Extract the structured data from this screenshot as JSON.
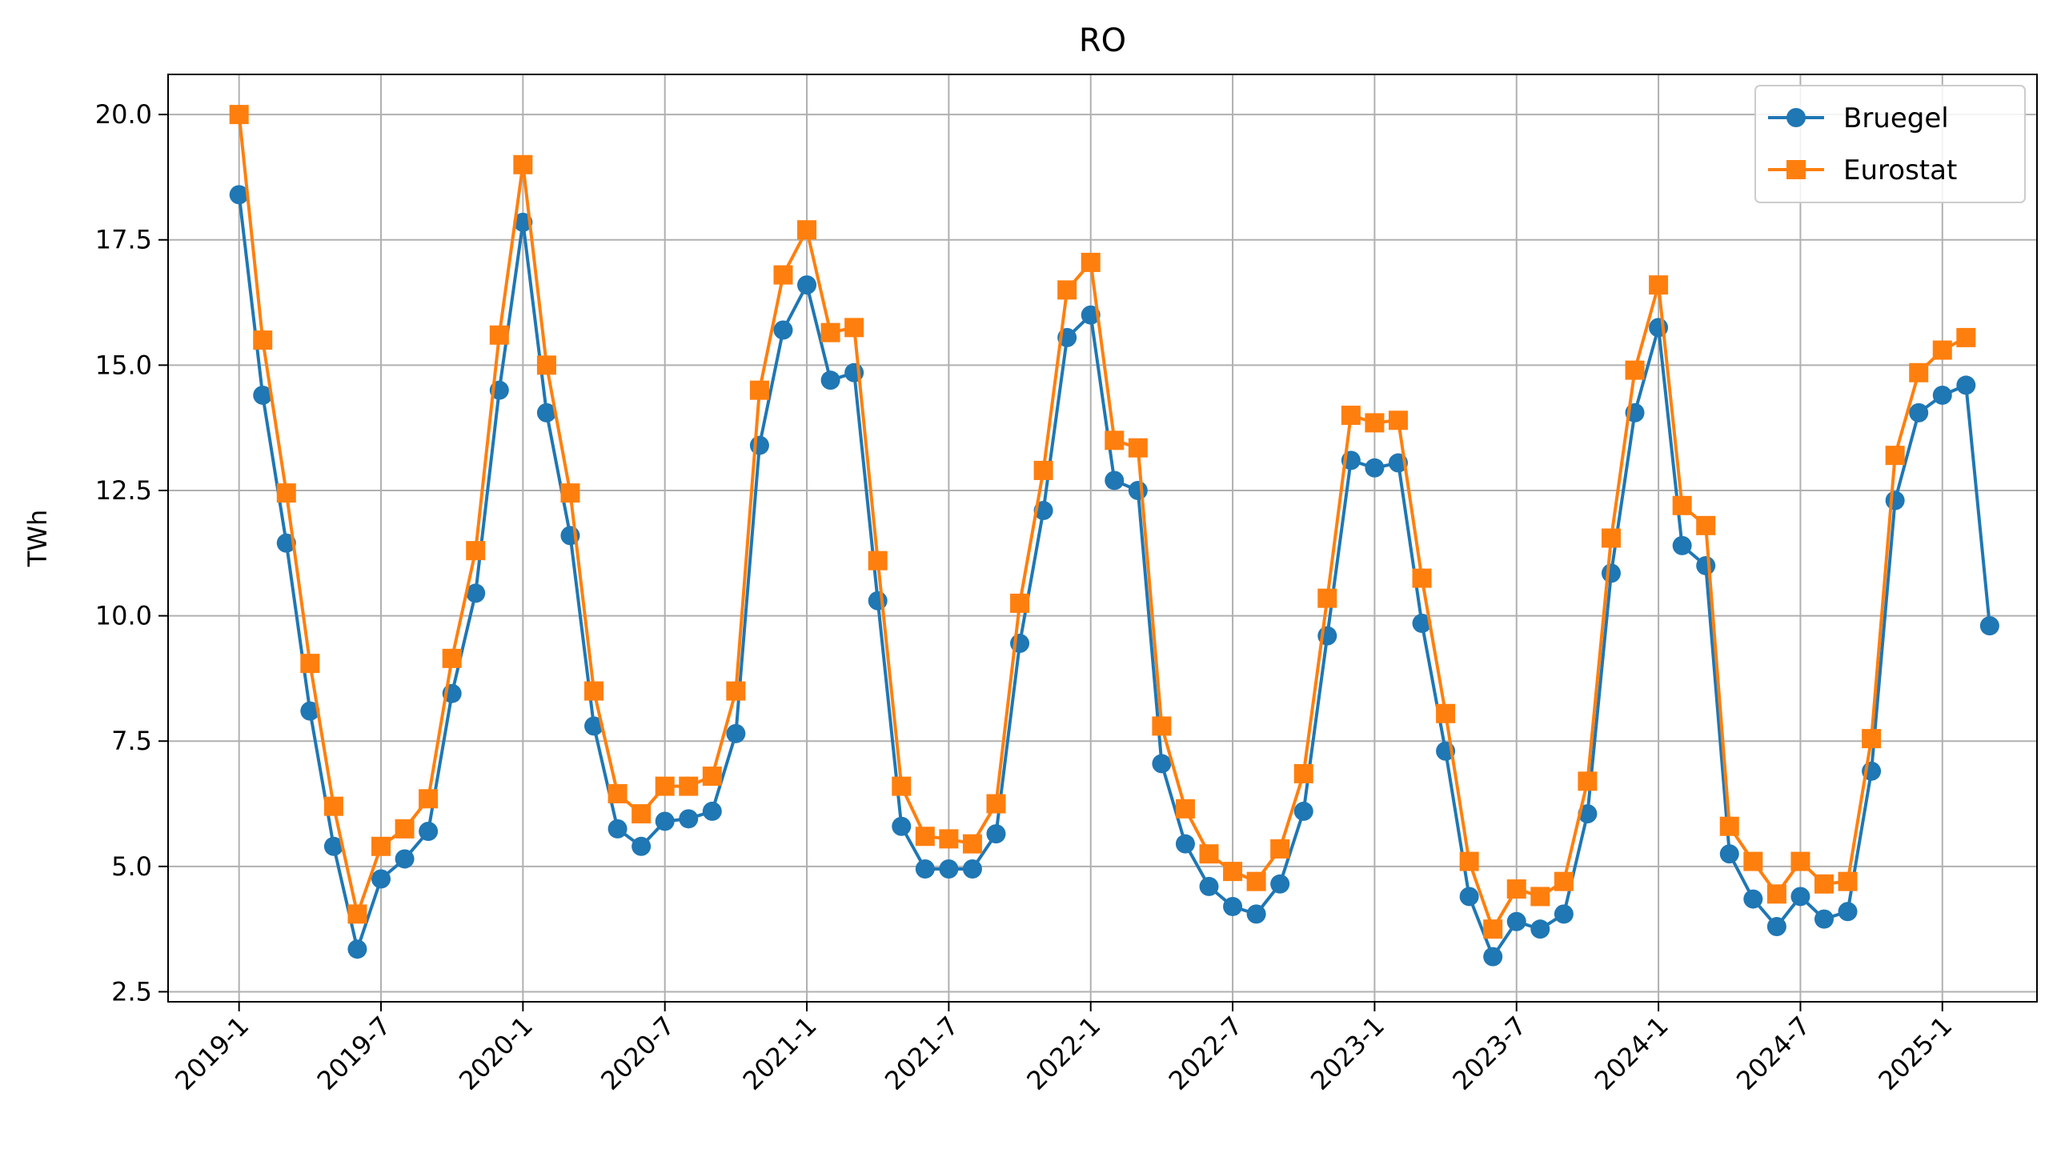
{
  "chart_data": {
    "type": "line",
    "title": "RO",
    "ylabel": "TWh",
    "xlabel": "",
    "xlim": [
      "2018-10",
      "2025-05"
    ],
    "ylim": [
      2.3,
      20.8
    ],
    "yticks": [
      2.5,
      5.0,
      7.5,
      10.0,
      12.5,
      15.0,
      17.5,
      20.0
    ],
    "ytick_labels": [
      "2.5",
      "5.0",
      "7.5",
      "10.0",
      "12.5",
      "15.0",
      "17.5",
      "20.0"
    ],
    "xticks": [
      "2019-1",
      "2019-7",
      "2020-1",
      "2020-7",
      "2021-1",
      "2021-7",
      "2022-1",
      "2022-7",
      "2023-1",
      "2023-7",
      "2024-1",
      "2024-7",
      "2025-1"
    ],
    "grid": true,
    "legend_position": "top-right",
    "series": [
      {
        "name": "Bruegel",
        "color": "#1f77b4",
        "marker": "circle",
        "start": "2019-1",
        "values": [
          18.4,
          14.4,
          11.45,
          8.1,
          5.4,
          3.35,
          4.75,
          5.15,
          5.7,
          8.45,
          10.45,
          14.5,
          17.85,
          14.05,
          11.6,
          7.8,
          5.75,
          5.4,
          5.9,
          5.95,
          6.1,
          7.65,
          13.4,
          15.7,
          16.6,
          14.7,
          14.85,
          10.3,
          5.8,
          4.95,
          4.95,
          4.95,
          5.65,
          9.45,
          12.1,
          15.55,
          16.0,
          12.7,
          12.5,
          7.05,
          5.45,
          4.6,
          4.2,
          4.05,
          4.65,
          6.1,
          9.6,
          13.1,
          12.95,
          13.05,
          9.85,
          7.3,
          4.4,
          3.2,
          3.9,
          3.75,
          4.05,
          6.05,
          10.85,
          14.05,
          15.75,
          11.4,
          11.0,
          5.25,
          4.35,
          3.8,
          4.4,
          3.95,
          4.1,
          6.9,
          12.3,
          14.05,
          14.4,
          14.6,
          9.8
        ]
      },
      {
        "name": "Eurostat",
        "color": "#ff7f0e",
        "marker": "square",
        "start": "2019-1",
        "values": [
          20.0,
          15.5,
          12.45,
          9.05,
          6.2,
          4.05,
          5.4,
          5.75,
          6.35,
          9.15,
          11.3,
          15.6,
          19.0,
          15.0,
          12.45,
          8.5,
          6.45,
          6.05,
          6.6,
          6.6,
          6.8,
          8.5,
          14.5,
          16.8,
          17.7,
          15.65,
          15.75,
          11.1,
          6.6,
          5.6,
          5.55,
          5.45,
          6.25,
          10.25,
          12.9,
          16.5,
          17.05,
          13.5,
          13.35,
          7.8,
          6.15,
          5.25,
          4.9,
          4.7,
          5.35,
          6.85,
          10.35,
          14.0,
          13.85,
          13.9,
          10.75,
          8.05,
          5.1,
          3.75,
          4.55,
          4.4,
          4.7,
          6.7,
          11.55,
          14.9,
          16.6,
          12.2,
          11.8,
          5.8,
          5.1,
          4.45,
          5.1,
          4.65,
          4.7,
          7.55,
          13.2,
          14.85,
          15.3,
          15.55
        ]
      }
    ]
  }
}
